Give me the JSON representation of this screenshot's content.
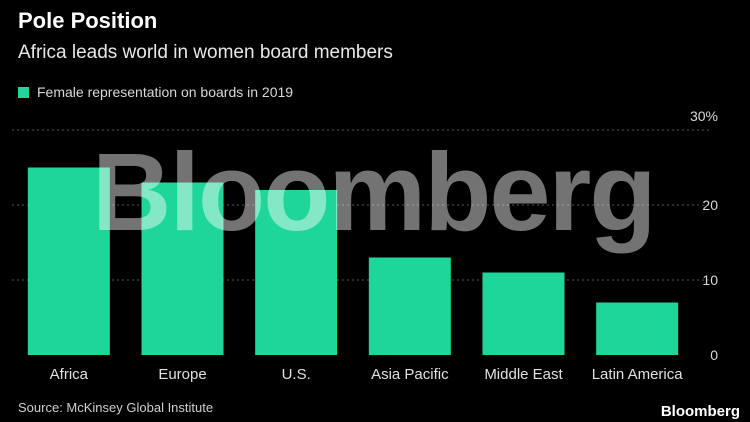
{
  "header": {
    "title": "Pole Position",
    "subtitle": "Africa leads world in women board members"
  },
  "legend": {
    "label": "Female representation on boards in 2019"
  },
  "watermark": "Bloomberg",
  "footer": {
    "source": "Source: McKinsey Global Institute",
    "logo": "Bloomberg"
  },
  "colors": {
    "bar": "#1fd69a",
    "background": "#000000",
    "grid": "#555555"
  },
  "chart_data": {
    "type": "bar",
    "title": "Pole Position",
    "subtitle": "Africa leads world in women board members",
    "categories": [
      "Africa",
      "Europe",
      "U.S.",
      "Asia Pacific",
      "Middle East",
      "Latin America"
    ],
    "series": [
      {
        "name": "Female representation on boards in 2019",
        "values": [
          25,
          23,
          22,
          13,
          11,
          7
        ]
      }
    ],
    "ylim": [
      0,
      30
    ],
    "yticks": [
      0,
      10,
      20,
      30
    ],
    "ytick_labels": [
      "0",
      "10",
      "20",
      "30%"
    ],
    "grid": true,
    "legend_position": "top-left",
    "xlabel": "",
    "ylabel": ""
  }
}
